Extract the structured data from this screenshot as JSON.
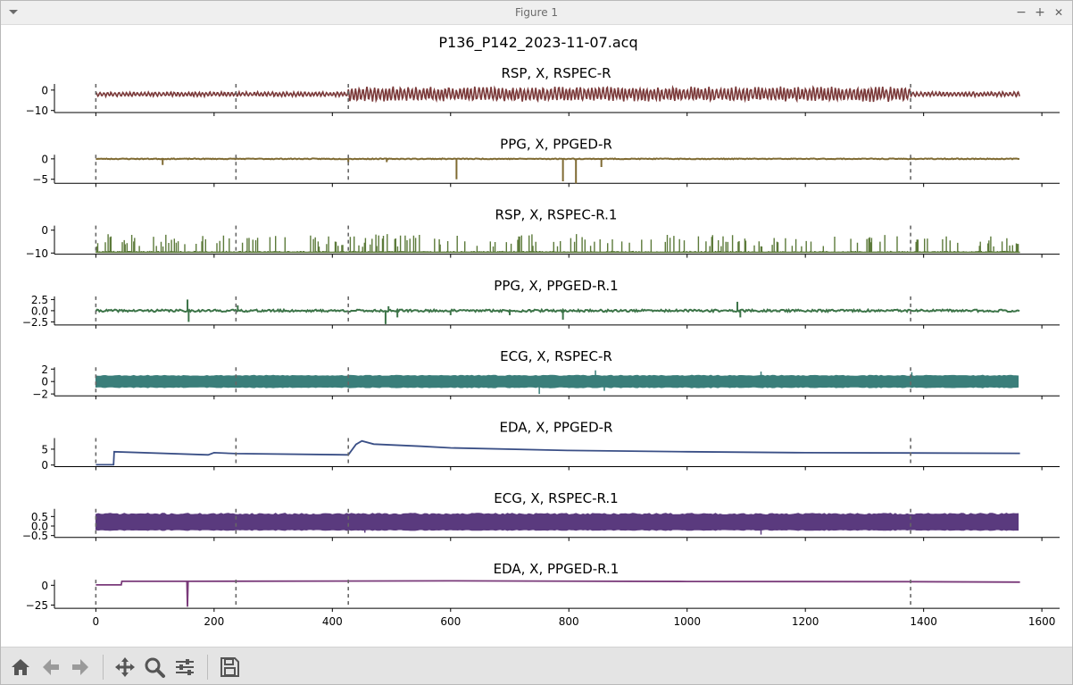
{
  "window": {
    "title": "Figure 1",
    "minimize_symbol": "−",
    "maximize_symbol": "+",
    "close_symbol": "✕"
  },
  "toolbar": {
    "tools": [
      "home-icon",
      "back-arrow-icon",
      "forward-arrow-icon",
      "pan-move-icon",
      "zoom-magnifier-icon",
      "configure-subplots-icon",
      "save-floppy-icon"
    ]
  },
  "chart_data": {
    "type": "line",
    "title": "P136_P142_2023-11-07.acq",
    "x_ticks": [
      0,
      200,
      400,
      600,
      800,
      1000,
      1200,
      1400,
      1600
    ],
    "x_range": [
      -70,
      1630
    ],
    "event_markers_x": [
      0,
      237,
      427,
      1378
    ],
    "data_x_range": [
      0,
      1563
    ],
    "subplots": [
      {
        "title": "RSP, X, RSPEC-R",
        "color": "#7b3a3a",
        "ylim": [
          -11,
          3
        ],
        "yticks": [
          0,
          -10
        ],
        "style": "resp",
        "baseline": -2,
        "amp": 2.5,
        "seed": 11,
        "segments": [
          {
            "x": [
              0,
              427
            ],
            "amp": 1.2
          },
          {
            "x": [
              427,
              1378
            ],
            "amp": 3.8
          },
          {
            "x": [
              1378,
              1563
            ],
            "amp": 1.2
          }
        ]
      },
      {
        "title": "PPG, X, PPGED-R",
        "color": "#7f6a32",
        "ylim": [
          -6,
          1
        ],
        "yticks": [
          0,
          -5
        ],
        "style": "flat",
        "baseline": 0,
        "amp": 0.1,
        "seed": 23,
        "spikes": [
          [
            113,
            -1.5
          ],
          [
            427,
            -0.8
          ],
          [
            492,
            -0.8
          ],
          [
            610,
            -5
          ],
          [
            790,
            -5.5
          ],
          [
            812,
            -6
          ],
          [
            855,
            -2
          ]
        ]
      },
      {
        "title": "RSP, X, RSPEC-R.1",
        "color": "#5c7a3a",
        "ylim": [
          -10.5,
          2
        ],
        "yticks": [
          0,
          -10
        ],
        "style": "burst",
        "baseline": -10,
        "amp": 8,
        "seed": 37
      },
      {
        "title": "PPG, X, PPGED-R.1",
        "color": "#3c7448",
        "ylim": [
          -3.2,
          3.2
        ],
        "yticks": [
          2.5,
          0.0,
          -2.5
        ],
        "ytick_labels": [
          "2.5",
          "0.0",
          "−2.5"
        ],
        "style": "flat",
        "baseline": 0,
        "amp": 0.25,
        "seed": 41,
        "spikes": [
          [
            155,
            2.5
          ],
          [
            157,
            -2.5
          ],
          [
            240,
            1.2
          ],
          [
            490,
            -3
          ],
          [
            495,
            1
          ],
          [
            510,
            -1.5
          ],
          [
            600,
            -1
          ],
          [
            700,
            -1
          ],
          [
            790,
            -2
          ],
          [
            1085,
            2
          ],
          [
            1090,
            -1.5
          ]
        ]
      },
      {
        "title": "ECG, X, RSPEC-R",
        "color": "#3a7e7a",
        "ylim": [
          -2.3,
          2.3
        ],
        "yticks": [
          2,
          0,
          -2
        ],
        "ytick_labels": [
          "2",
          "0",
          "−2"
        ],
        "style": "dense",
        "baseline": 0,
        "amp": 1.0,
        "seed": 53,
        "spikes": [
          [
            750,
            -2
          ],
          [
            845,
            1.8
          ],
          [
            860,
            -1.5
          ],
          [
            1125,
            1.6
          ],
          [
            1380,
            1.5
          ]
        ]
      },
      {
        "title": "EDA, X, PPGED-R",
        "color": "#3a4f86",
        "ylim": [
          -0.5,
          8.5
        ],
        "yticks": [
          5,
          0
        ],
        "style": "eda",
        "seed": 61,
        "points": [
          [
            0,
            0.1
          ],
          [
            30,
            0.1
          ],
          [
            31,
            4.2
          ],
          [
            190,
            3.2
          ],
          [
            200,
            3.9
          ],
          [
            237,
            3.6
          ],
          [
            427,
            3.2
          ],
          [
            440,
            6.5
          ],
          [
            450,
            7.6
          ],
          [
            470,
            6.6
          ],
          [
            550,
            5.9
          ],
          [
            600,
            5.4
          ],
          [
            800,
            4.6
          ],
          [
            1000,
            4.2
          ],
          [
            1200,
            3.9
          ],
          [
            1378,
            3.8
          ],
          [
            1563,
            3.7
          ]
        ]
      },
      {
        "title": "ECG, X, RSPEC-R.1",
        "color": "#5a3a7e",
        "ylim": [
          -0.6,
          0.9
        ],
        "yticks": [
          0.5,
          0.0,
          -0.5
        ],
        "ytick_labels": [
          "0.5",
          "0.0",
          "−0.5"
        ],
        "style": "block",
        "baseline": 0.1,
        "amp": 0.6,
        "seed": 71,
        "spikes": [
          [
            1125,
            -0.45
          ],
          [
            455,
            -0.35
          ]
        ]
      },
      {
        "title": "EDA, X, PPGED-R.1",
        "color": "#7a3a7a",
        "ylim": [
          -29,
          7
        ],
        "yticks": [
          0,
          -25
        ],
        "ytick_labels": [
          "0",
          "−25"
        ],
        "style": "eda",
        "seed": 83,
        "points": [
          [
            0,
            0.5
          ],
          [
            43,
            0.5
          ],
          [
            44,
            5
          ],
          [
            150,
            5
          ],
          [
            154,
            5
          ],
          [
            155,
            -27
          ],
          [
            156,
            5
          ],
          [
            600,
            5.5
          ],
          [
            1000,
            4.8
          ],
          [
            1378,
            4.5
          ],
          [
            1563,
            4
          ]
        ]
      }
    ]
  }
}
